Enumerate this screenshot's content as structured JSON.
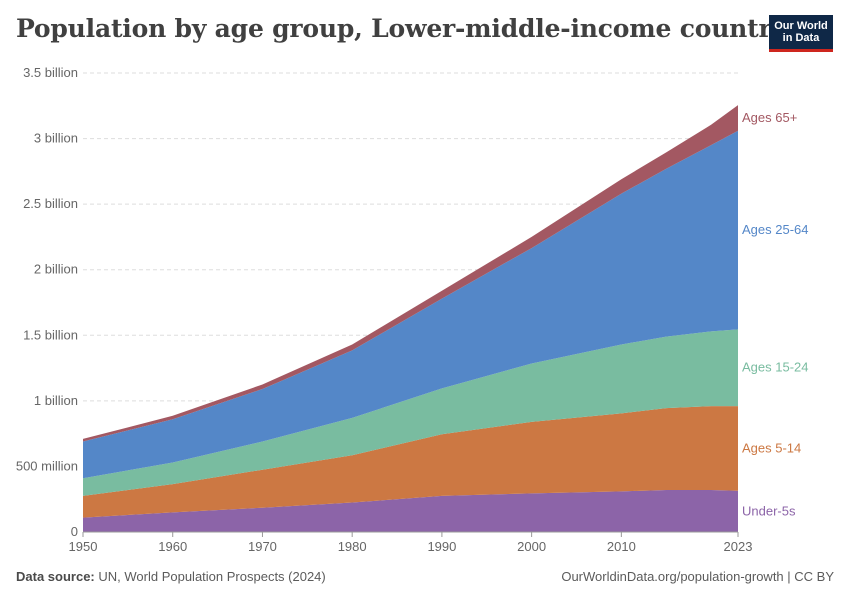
{
  "title": "Population by age group, Lower-middle-income countries",
  "logo": {
    "line1": "Our World",
    "line2": "in Data"
  },
  "footer": {
    "source_label": "Data source:",
    "source_text": "UN, World Population Prospects (2024)",
    "right_text": "OurWorldinData.org/population-growth | CC BY"
  },
  "chart_data": {
    "type": "area",
    "stacked": true,
    "x": [
      1950,
      1960,
      1970,
      1980,
      1990,
      2000,
      2010,
      2015,
      2020,
      2023
    ],
    "x_ticks": [
      "1950",
      "1960",
      "1970",
      "1980",
      "1990",
      "2000",
      "2010",
      "2023"
    ],
    "y_ticks": [
      "0",
      "500 million",
      "1 billion",
      "1.5 billion",
      "2 billion",
      "2.5 billion",
      "3 billion",
      "3.5 billion"
    ],
    "y_tick_values": [
      0,
      500000000,
      1000000000,
      1500000000,
      2000000000,
      2500000000,
      3000000000,
      3500000000
    ],
    "ylim": [
      0,
      3500000000
    ],
    "xlim": [
      1950,
      2023
    ],
    "grid": true,
    "legend": "right-inline-labels",
    "series": [
      {
        "name": "Under-5s",
        "color": "#8c64a8",
        "values": [
          110000000,
          150000000,
          185000000,
          225000000,
          275000000,
          295000000,
          310000000,
          320000000,
          320000000,
          315000000
        ]
      },
      {
        "name": "Ages 5-14",
        "color": "#cc7843",
        "values": [
          165000000,
          215000000,
          290000000,
          360000000,
          470000000,
          545000000,
          595000000,
          625000000,
          640000000,
          645000000
        ]
      },
      {
        "name": "Ages 15-24",
        "color": "#79bca0",
        "values": [
          135000000,
          165000000,
          215000000,
          285000000,
          350000000,
          445000000,
          525000000,
          545000000,
          570000000,
          585000000
        ]
      },
      {
        "name": "Ages 25-64",
        "color": "#5487c8",
        "values": [
          280000000,
          330000000,
          400000000,
          515000000,
          685000000,
          880000000,
          1150000000,
          1280000000,
          1420000000,
          1515000000
        ]
      },
      {
        "name": "Ages 65+",
        "color": "#a35862",
        "values": [
          20000000,
          26000000,
          35000000,
          45000000,
          60000000,
          85000000,
          110000000,
          125000000,
          155000000,
          195000000
        ]
      }
    ]
  }
}
